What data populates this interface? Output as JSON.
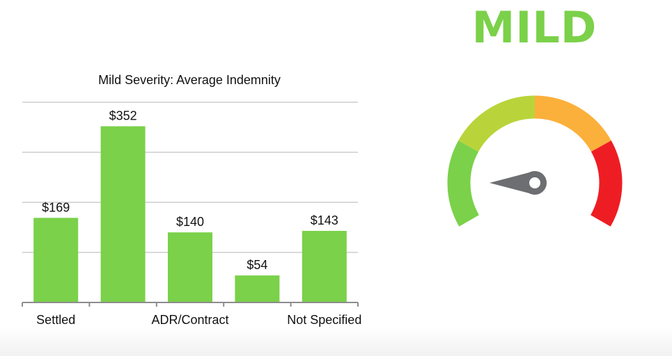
{
  "severity_label": "MILD",
  "colors": {
    "bar": "#7bd14a",
    "severity_label": "#7bd14a",
    "gauge_green": "#7bd14a",
    "gauge_yellow_green": "#b9d43a",
    "gauge_orange": "#fbb03b",
    "gauge_red": "#ee1d23",
    "needle": "#6d6e71"
  },
  "chart_data": {
    "type": "bar",
    "title": "Mild Severity: Average Indemnity",
    "categories": [
      "Settled",
      "",
      "ADR/Contract",
      "",
      "Not Specified"
    ],
    "values": [
      169,
      352,
      140,
      54,
      143
    ],
    "value_labels": [
      "$169",
      "$352",
      "$140",
      "$54",
      "$143"
    ],
    "xlabel": "",
    "ylabel": "",
    "ylim": [
      0,
      400
    ],
    "grid": true,
    "legend": "none"
  },
  "gauge": {
    "type": "speedometer",
    "bands": [
      "green",
      "yellow-green",
      "orange",
      "red"
    ],
    "reading": "low"
  }
}
